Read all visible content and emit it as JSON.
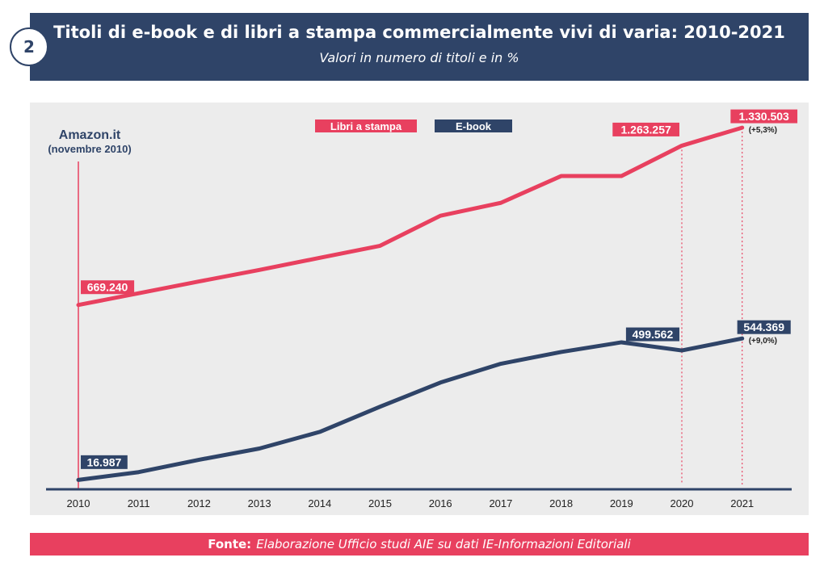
{
  "header": {
    "number": "2",
    "title": "Titoli di e-book e di libri a stampa commercialmente vivi di varia: 2010-2021",
    "subtitle": "Valori in numero di titoli e in %"
  },
  "footer": {
    "label": "Fonte:",
    "text": "Elaborazione Ufficio studi AIE su dati IE-Informazioni Editoriali"
  },
  "chart_data": {
    "type": "line",
    "x": [
      "2010",
      "2011",
      "2012",
      "2013",
      "2014",
      "2015",
      "2016",
      "2017",
      "2018",
      "2019",
      "2020",
      "2021"
    ],
    "ylim": [
      0,
      1400000
    ],
    "series": [
      {
        "name": "Libri a stampa",
        "color": "#e8405f",
        "values": [
          669240,
          713000,
          757000,
          800000,
          845000,
          890000,
          1002000,
          1050000,
          1150000,
          1150000,
          1263257,
          1330503
        ]
      },
      {
        "name": "E-book",
        "color": "#2f4468",
        "values": [
          16987,
          46000,
          92000,
          134000,
          196000,
          290000,
          380000,
          450000,
          494000,
          530000,
          499562,
          544369
        ]
      }
    ],
    "data_labels": [
      {
        "series": 0,
        "x": "2010",
        "text": "669.240"
      },
      {
        "series": 0,
        "x": "2020",
        "text": "1.263.257"
      },
      {
        "series": 0,
        "x": "2021",
        "text": "1.330.503"
      },
      {
        "series": 1,
        "x": "2010",
        "text": "16.987"
      },
      {
        "series": 1,
        "x": "2020",
        "text": "499.562"
      },
      {
        "series": 1,
        "x": "2021",
        "text": "544.369"
      }
    ],
    "growth_labels": [
      {
        "series": 0,
        "text": "(+5,3%)"
      },
      {
        "series": 1,
        "text": "(+9,0%)"
      }
    ],
    "annotation": {
      "x": "2010",
      "title": "Amazon.it",
      "subtitle": "(novembre 2010)"
    },
    "legend": [
      "Libri a stampa",
      "E-book"
    ],
    "legend_position": "top-center",
    "grid": false
  }
}
